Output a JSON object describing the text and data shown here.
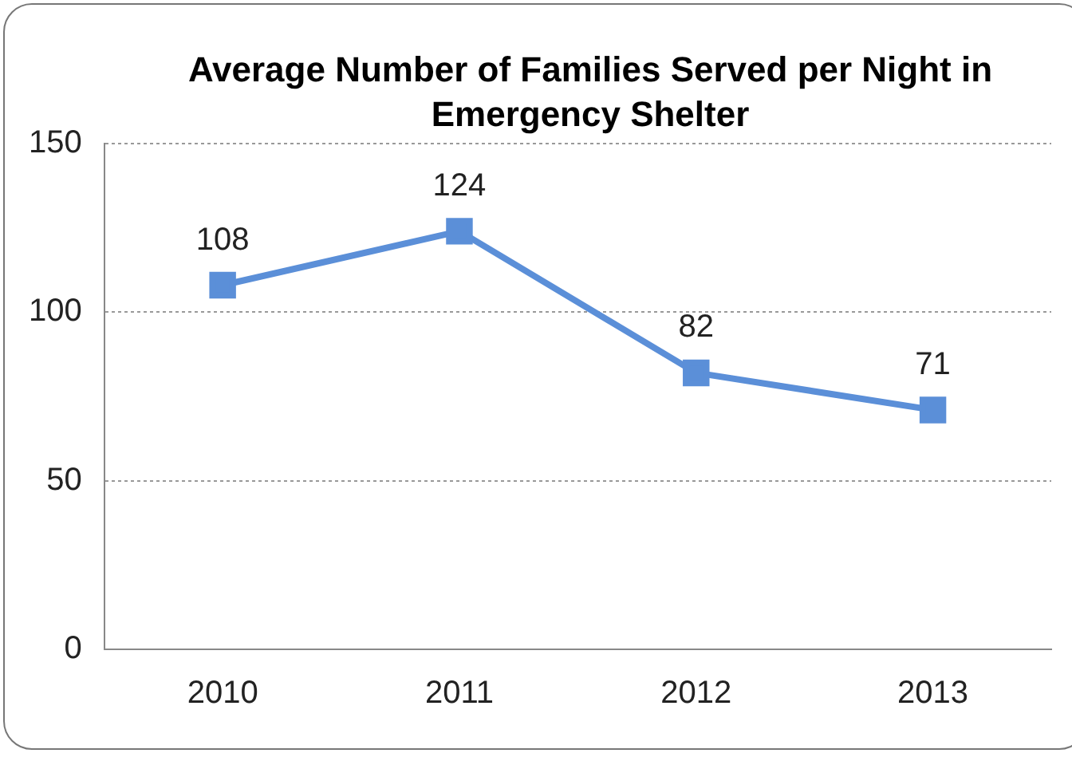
{
  "chart_data": {
    "type": "line",
    "title": "Average Number of Families Served per Night in Emergency Shelter",
    "categories": [
      "2010",
      "2011",
      "2012",
      "2013"
    ],
    "series": [
      {
        "color": "#5b8fd8",
        "values": [
          108,
          124,
          82,
          71
        ]
      }
    ],
    "ylim": [
      0,
      150
    ],
    "yticks": [
      0,
      50,
      100,
      150
    ],
    "grid": "y",
    "legend": false,
    "marker": "square",
    "line_style": "solid",
    "data_labels": true
  }
}
